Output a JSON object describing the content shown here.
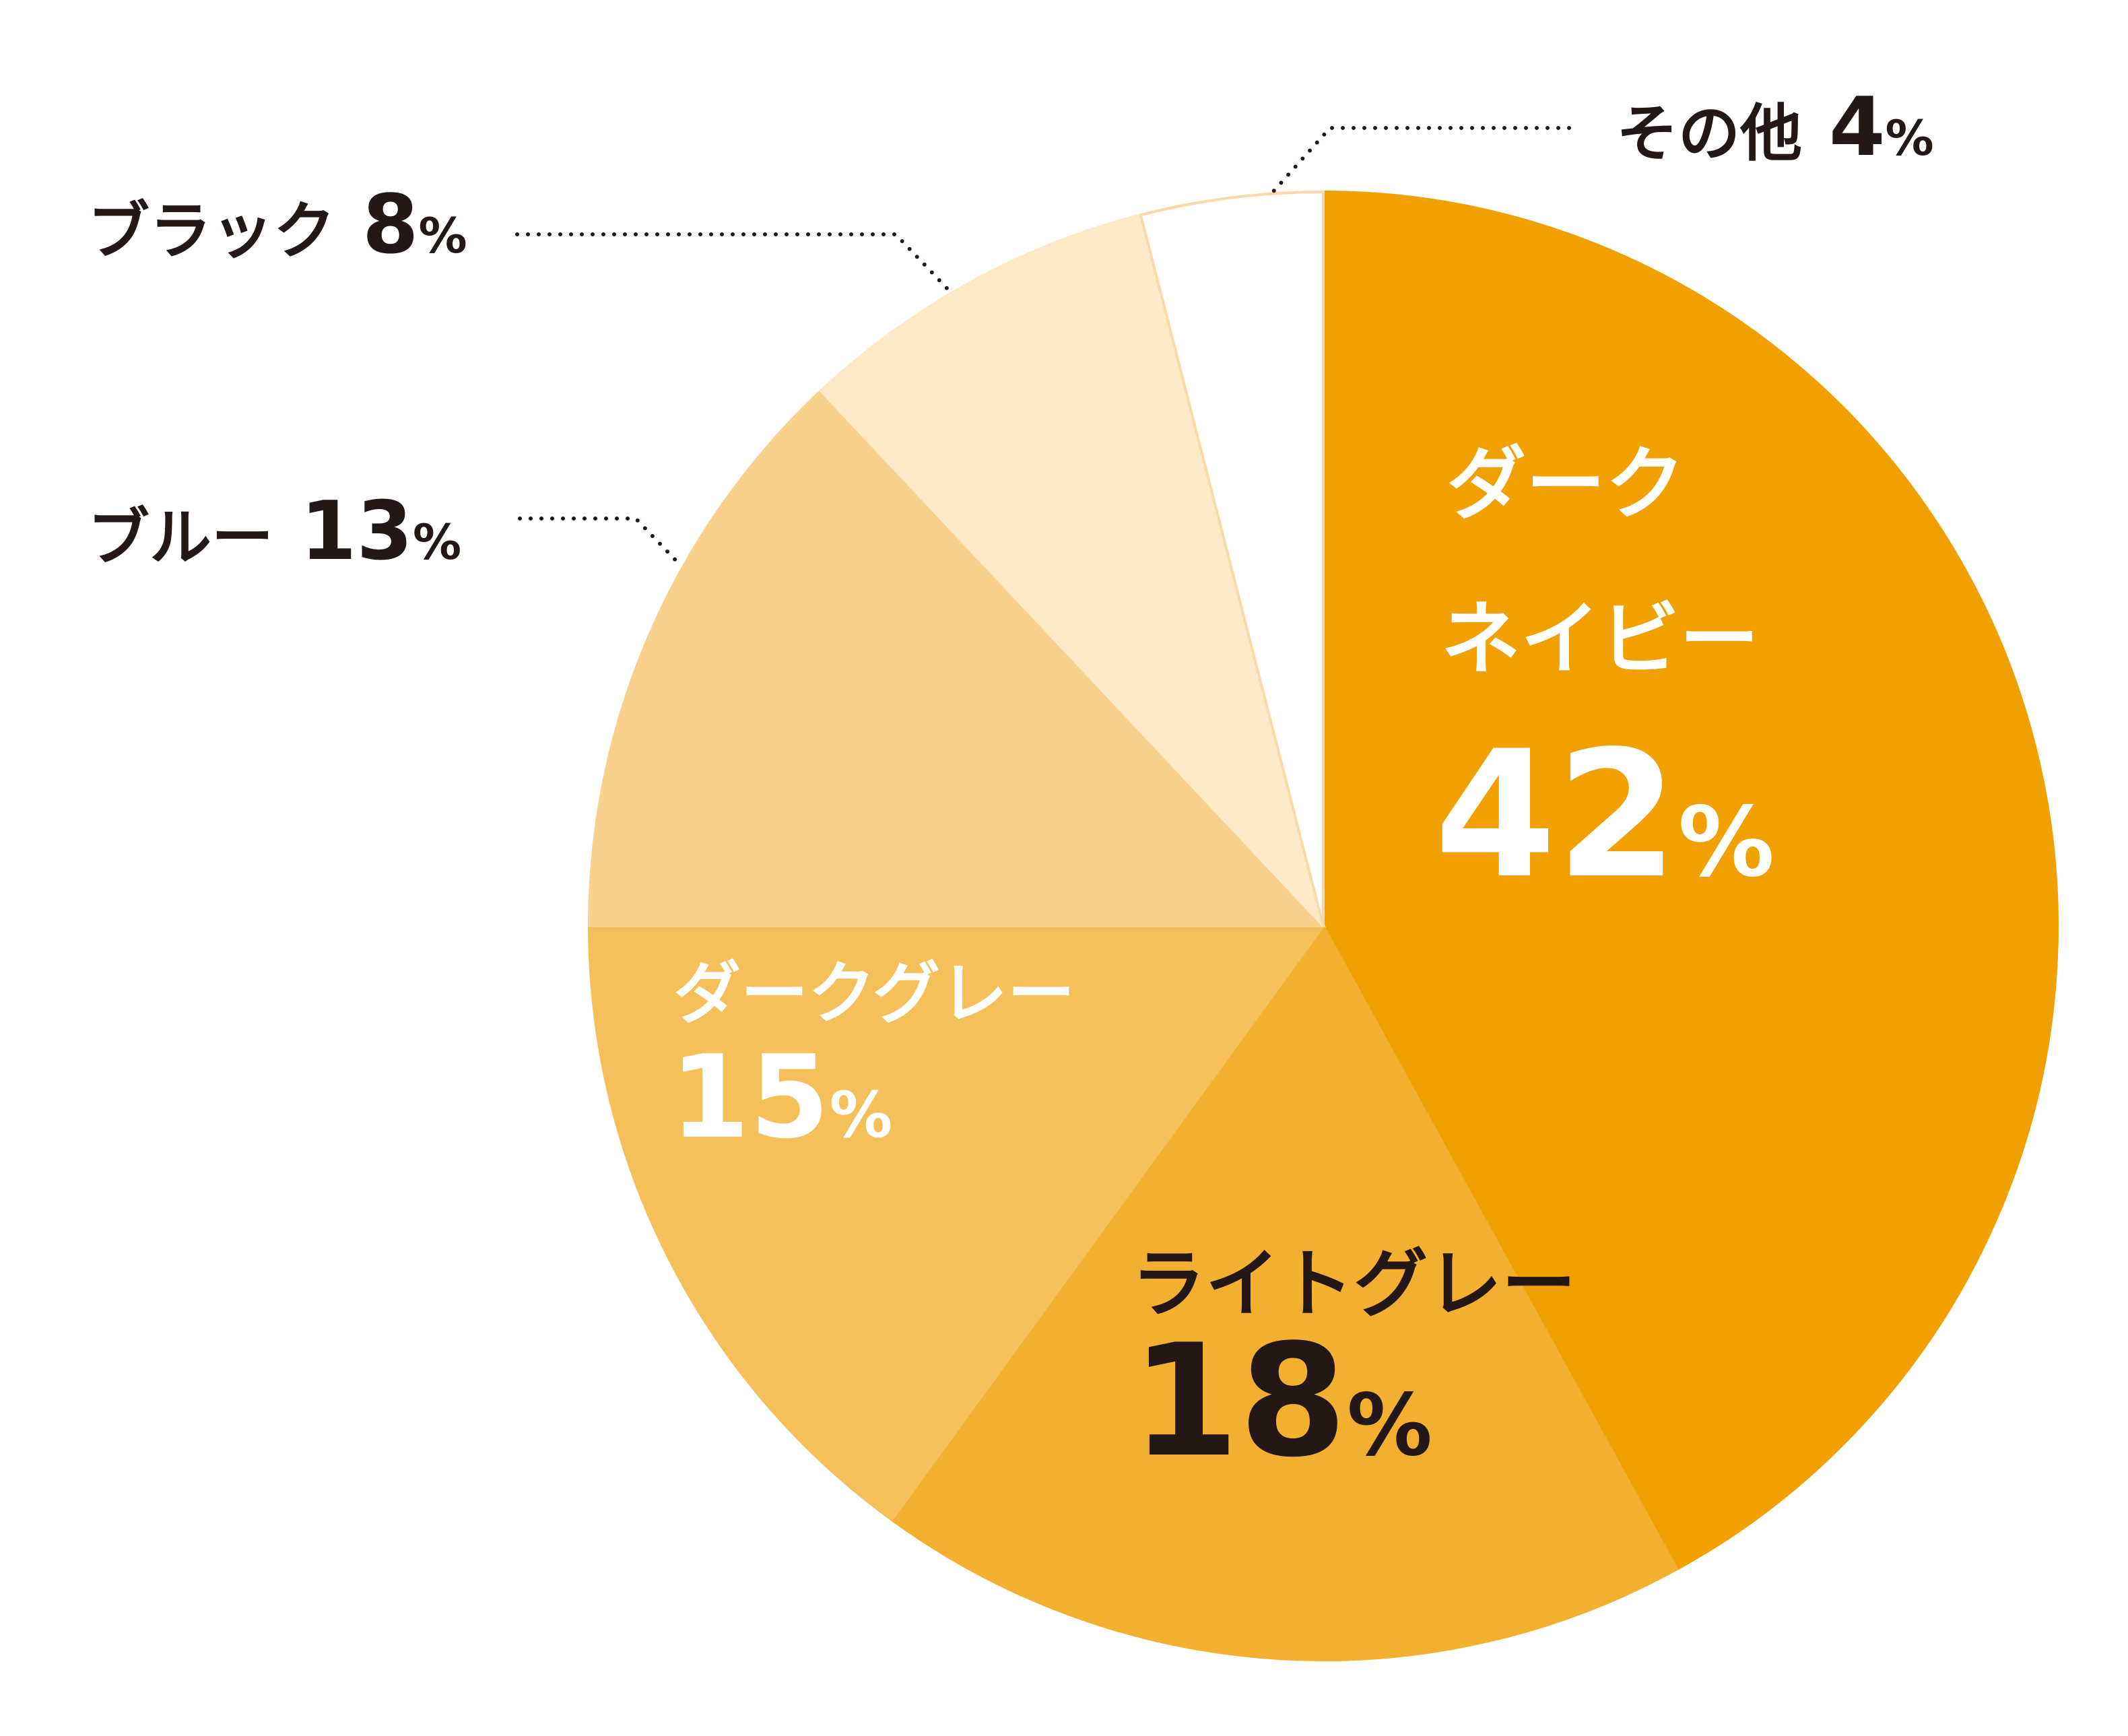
{
  "chart_data": {
    "type": "pie",
    "title": "",
    "slices": [
      {
        "label_lines": [
          "ダーク",
          "ネイビー"
        ],
        "value": 42,
        "percent_text": "42",
        "color": "#F0A000",
        "text_color": "#FFFFFF",
        "label_position": "inside"
      },
      {
        "label_lines": [
          "ライトグレー"
        ],
        "value": 18,
        "percent_text": "18",
        "color": "#F3B030",
        "text_color": "#231815",
        "label_position": "inside"
      },
      {
        "label_lines": [
          "ダークグレー"
        ],
        "value": 15,
        "percent_text": "15",
        "color": "#F5C05C",
        "text_color": "#FFFFFF",
        "label_position": "inside"
      },
      {
        "label_lines": [
          "ブルー"
        ],
        "value": 13,
        "percent_text": "13",
        "color": "#F8D18D",
        "text_color": "#231815",
        "label_position": "outside"
      },
      {
        "label_lines": [
          "ブラック"
        ],
        "value": 8,
        "percent_text": "8",
        "color": "#FBE9C7",
        "text_color": "#231815",
        "label_position": "outside"
      },
      {
        "label_lines": [
          "その他"
        ],
        "value": 4,
        "percent_text": "4",
        "color": "#FFFFFF",
        "text_color": "#231815",
        "label_position": "outside"
      }
    ],
    "percent_symbol": "%",
    "start_angle": "top",
    "direction": "clockwise",
    "outline_color": "#F8D9A8"
  }
}
